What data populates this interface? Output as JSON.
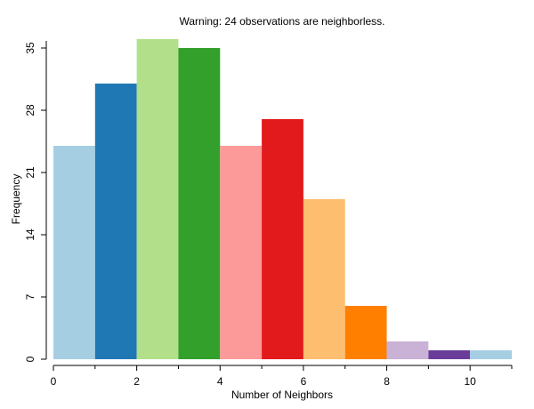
{
  "chart_data": {
    "type": "bar",
    "title": "Warning: 24 observations are neighborless.",
    "xlabel": "Number of Neighbors",
    "ylabel": "Frequency",
    "bins": [
      {
        "x0": 0,
        "x1": 1,
        "value": 24
      },
      {
        "x0": 1,
        "x1": 2,
        "value": 31
      },
      {
        "x0": 2,
        "x1": 3,
        "value": 36
      },
      {
        "x0": 3,
        "x1": 4,
        "value": 35
      },
      {
        "x0": 4,
        "x1": 5,
        "value": 24
      },
      {
        "x0": 5,
        "x1": 6,
        "value": 27
      },
      {
        "x0": 6,
        "x1": 7,
        "value": 18
      },
      {
        "x0": 7,
        "x1": 8,
        "value": 6
      },
      {
        "x0": 8,
        "x1": 9,
        "value": 2
      },
      {
        "x0": 9,
        "x1": 10,
        "value": 1
      },
      {
        "x0": 10,
        "x1": 11,
        "value": 1
      }
    ],
    "colors": [
      "#a6cee3",
      "#1f78b4",
      "#b2df8a",
      "#33a02c",
      "#fb9a99",
      "#e31a1c",
      "#fdbf6f",
      "#ff7f00",
      "#cab2d6",
      "#6a3d9a",
      "#a6cee3"
    ],
    "xlim": [
      0,
      11
    ],
    "ylim": [
      0,
      36
    ],
    "x_ticks_major": [
      0,
      2,
      4,
      6,
      8,
      10
    ],
    "x_ticks_minor": [
      1,
      3,
      5,
      7,
      9,
      11
    ],
    "y_ticks": [
      0,
      7,
      14,
      21,
      28,
      35
    ],
    "grid": false,
    "legend": "none"
  }
}
